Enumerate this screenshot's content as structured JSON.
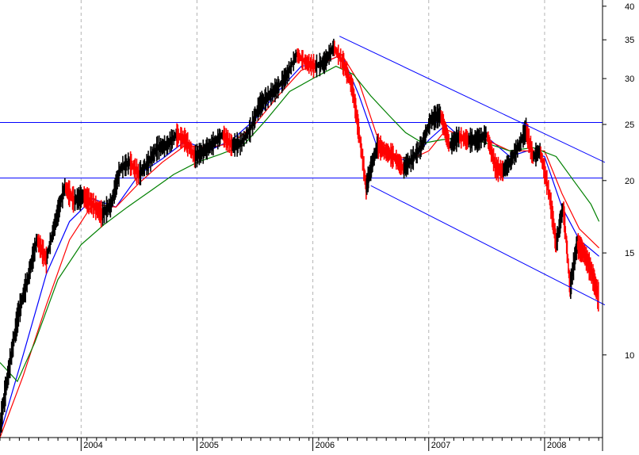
{
  "chart_data": {
    "type": "line",
    "title": "",
    "xlabel": "",
    "ylabel": "",
    "yscale": "log",
    "ylim": [
      7.2,
      41
    ],
    "xlim": [
      2003.3,
      2008.5
    ],
    "grid": {
      "x": true,
      "y": false,
      "style": "dashed vertical lines at each year"
    },
    "y_tick_labels": [
      "40",
      "35",
      "30",
      "25",
      "20",
      "15",
      "10"
    ],
    "y_tick_values": [
      40,
      35,
      30,
      25,
      20,
      15,
      10
    ],
    "x_tick_labels": [
      "2004",
      "2005",
      "2006",
      "2007",
      "2008"
    ],
    "x_tick_values": [
      2004,
      2005,
      2006,
      2007,
      2008
    ],
    "colors": {
      "price_up": "#000000",
      "price_down": "#ff0000",
      "ma_short": "#0000ff",
      "ma_mid": "#ff0000",
      "ma_long": "#008000",
      "trendlines": "#0000ff"
    },
    "price": {
      "x": [
        2003.3,
        2003.38,
        2003.46,
        2003.54,
        2003.62,
        2003.7,
        2003.78,
        2003.86,
        2003.94,
        2004.02,
        2004.1,
        2004.18,
        2004.26,
        2004.34,
        2004.42,
        2004.5,
        2004.58,
        2004.66,
        2004.74,
        2004.82,
        2004.9,
        2004.98,
        2005.06,
        2005.14,
        2005.22,
        2005.3,
        2005.38,
        2005.46,
        2005.54,
        2005.62,
        2005.7,
        2005.78,
        2005.86,
        2005.94,
        2006.02,
        2006.1,
        2006.18,
        2006.26,
        2006.34,
        2006.4,
        2006.46,
        2006.5,
        2006.56,
        2006.62,
        2006.7,
        2006.78,
        2006.86,
        2006.94,
        2007.02,
        2007.1,
        2007.18,
        2007.26,
        2007.34,
        2007.42,
        2007.5,
        2007.58,
        2007.64,
        2007.7,
        2007.78,
        2007.84,
        2007.9,
        2007.96,
        2008.04,
        2008.1,
        2008.16,
        2008.22,
        2008.28,
        2008.34,
        2008.4,
        2008.47
      ],
      "y": [
        7.5,
        9.5,
        11.8,
        13.5,
        15.8,
        14.6,
        17.0,
        19.5,
        18.5,
        18.8,
        18.2,
        17.5,
        18.2,
        21.0,
        21.5,
        20.5,
        21.5,
        22.8,
        23.0,
        24.0,
        23.5,
        22.0,
        22.5,
        23.2,
        24.0,
        23.0,
        23.2,
        24.5,
        27.0,
        28.0,
        29.0,
        30.5,
        33.0,
        32.0,
        31.5,
        32.0,
        34.0,
        32.0,
        29.0,
        24.0,
        19.5,
        21.0,
        23.0,
        22.5,
        22.0,
        21.0,
        21.8,
        23.0,
        25.5,
        26.0,
        23.0,
        23.8,
        23.5,
        23.5,
        24.0,
        21.0,
        20.8,
        21.5,
        23.0,
        24.5,
        22.0,
        22.5,
        19.0,
        15.5,
        18.0,
        13.0,
        15.5,
        15.0,
        14.0,
        12.5
      ]
    },
    "series": [
      {
        "x": [
          2003.3,
          2003.5,
          2003.7,
          2003.9,
          2004.1,
          2004.3,
          2004.5,
          2004.7,
          2004.9,
          2005.1,
          2005.3,
          2005.5,
          2005.7,
          2005.9,
          2006.1,
          2006.25,
          2006.4,
          2006.55,
          2006.7,
          2006.85,
          2007.0,
          2007.15,
          2007.3,
          2007.5,
          2007.7,
          2007.85,
          2008.0,
          2008.15,
          2008.3,
          2008.47
        ],
        "values": [
          7.3,
          10.0,
          13.8,
          17.0,
          18.6,
          18.0,
          20.5,
          21.8,
          23.4,
          22.5,
          23.5,
          25.5,
          28.5,
          31.5,
          32.0,
          33.0,
          28.0,
          23.0,
          22.0,
          21.5,
          23.5,
          25.0,
          23.5,
          23.8,
          22.0,
          22.5,
          22.0,
          18.0,
          15.8,
          14.8
        ]
      },
      {
        "x": [
          2003.3,
          2003.5,
          2003.7,
          2003.9,
          2004.1,
          2004.3,
          2004.5,
          2004.7,
          2004.9,
          2005.1,
          2005.3,
          2005.5,
          2005.7,
          2005.9,
          2006.1,
          2006.25,
          2006.4,
          2006.55,
          2006.7,
          2006.85,
          2007.0,
          2007.15,
          2007.3,
          2007.5,
          2007.7,
          2007.85,
          2008.0,
          2008.15,
          2008.3,
          2008.47
        ],
        "values": [
          7.2,
          9.2,
          12.2,
          15.8,
          18.2,
          18.0,
          19.8,
          21.5,
          23.0,
          22.8,
          23.2,
          25.0,
          28.0,
          31.0,
          32.0,
          33.0,
          29.5,
          24.0,
          22.0,
          21.8,
          22.5,
          24.5,
          23.8,
          23.5,
          22.5,
          22.5,
          22.5,
          19.0,
          16.5,
          15.3
        ]
      },
      {
        "x": [
          2003.3,
          2003.45,
          2003.6,
          2003.8,
          2004.0,
          2004.2,
          2004.4,
          2004.6,
          2004.8,
          2005.0,
          2005.2,
          2005.4,
          2005.6,
          2005.8,
          2006.0,
          2006.2,
          2006.35,
          2006.5,
          2006.65,
          2006.8,
          2006.95,
          2007.1,
          2007.3,
          2007.5,
          2007.7,
          2007.9,
          2008.1,
          2008.25,
          2008.4,
          2008.47
        ],
        "values": [
          9.7,
          9.0,
          10.5,
          13.5,
          15.5,
          16.8,
          18.0,
          19.2,
          20.5,
          21.5,
          22.2,
          23.0,
          25.5,
          28.5,
          30.0,
          31.5,
          30.5,
          28.0,
          26.0,
          24.2,
          23.2,
          23.5,
          23.8,
          23.2,
          22.5,
          22.8,
          22.0,
          20.0,
          18.2,
          17.0
        ]
      }
    ],
    "horizontal_lines": [
      25.2,
      20.2
    ],
    "trendlines": [
      {
        "x": [
          2006.23,
          2008.52
        ],
        "y": [
          35.5,
          21.5
        ]
      },
      {
        "x": [
          2006.5,
          2008.52
        ],
        "y": [
          19.6,
          12.2
        ]
      }
    ]
  }
}
